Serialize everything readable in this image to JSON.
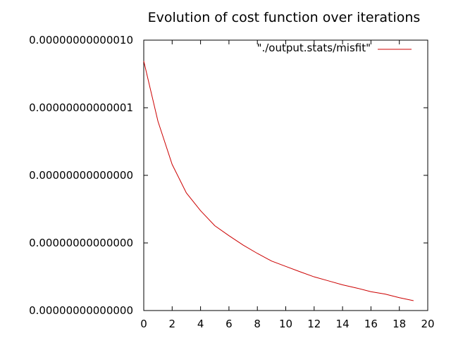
{
  "chart_data": {
    "type": "line",
    "title": "Evolution of cost function over iterations",
    "xlabel": "",
    "ylabel": "",
    "scale": "log-y",
    "xlim": [
      0,
      20
    ],
    "ylim": [
      1e-17,
      1e-13
    ],
    "x_ticks": [
      0,
      2,
      4,
      6,
      8,
      10,
      12,
      14,
      16,
      18,
      20
    ],
    "y_ticks": [
      1e-17,
      1e-16,
      1e-15,
      1e-14,
      1e-13
    ],
    "y_tick_labels": [
      "0.00000000000000",
      "0.00000000000000",
      "0.00000000000000",
      "0.00000000000001",
      "0.00000000000010"
    ],
    "grid": false,
    "legend_position": "top-right",
    "series": [
      {
        "name": "\"./output.stats/misfit\"",
        "color": "#cc0000",
        "x": [
          0,
          1,
          2,
          3,
          4,
          5,
          6,
          7,
          8,
          9,
          10,
          11,
          12,
          13,
          14,
          15,
          16,
          17,
          18,
          19
        ],
        "y": [
          4.9e-14,
          6.3e-15,
          1.45e-15,
          5.5e-16,
          3e-16,
          1.8e-16,
          1.28e-16,
          9.3e-17,
          7e-17,
          5.4e-17,
          4.5e-17,
          3.75e-17,
          3.15e-17,
          2.75e-17,
          2.4e-17,
          2.15e-17,
          1.9e-17,
          1.75e-17,
          1.55e-17,
          1.4e-17
        ]
      }
    ]
  }
}
